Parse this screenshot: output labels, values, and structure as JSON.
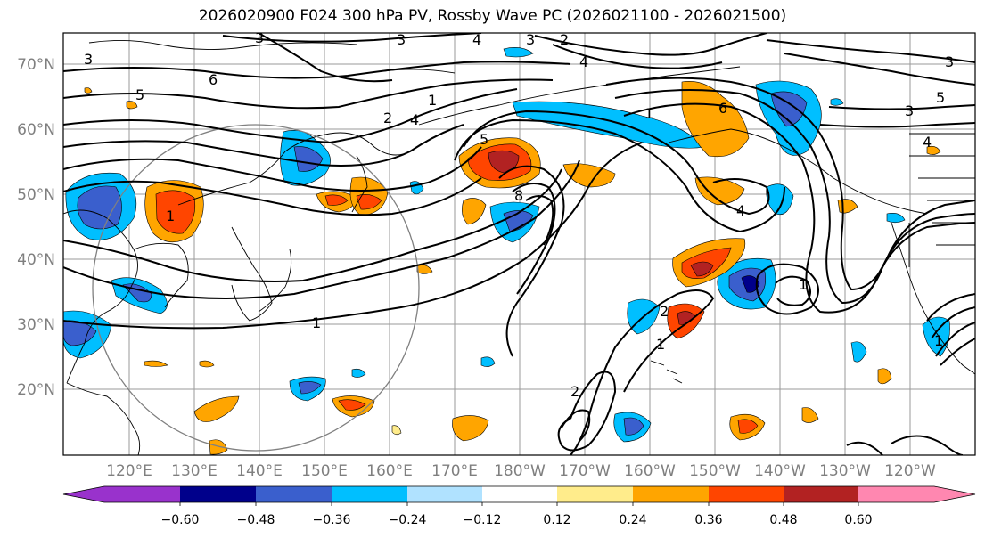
{
  "title": "2026020900 F024 300 hPa PV, Rossby Wave PC (2026021100 - 2026021500)",
  "map": {
    "lat_labels": [
      "70°N",
      "60°N",
      "50°N",
      "40°N",
      "30°N",
      "20°N"
    ],
    "lon_labels": [
      "120°E",
      "130°E",
      "140°E",
      "150°E",
      "160°E",
      "170°E",
      "180°W",
      "170°W",
      "160°W",
      "150°W",
      "140°W",
      "130°W",
      "120°W"
    ],
    "contour_labels": [
      "3",
      "5",
      "6",
      "3",
      "3",
      "2",
      "4",
      "1",
      "4",
      "3",
      "5",
      "1",
      "5",
      "6",
      "3",
      "4",
      "8",
      "1",
      "4",
      "1",
      "2",
      "1",
      "2",
      "1",
      "1",
      "3",
      "2",
      "4"
    ]
  },
  "colorbar": {
    "tick_labels": [
      "−0.60",
      "−0.48",
      "−0.36",
      "−0.24",
      "−0.12",
      "0.12",
      "0.24",
      "0.36",
      "0.48",
      "0.60"
    ],
    "colors": [
      "#9932cc",
      "#00008b",
      "#3a5fcd",
      "#00bfff",
      "#b0e2ff",
      "#ffffff",
      "#ffec8b",
      "#ffa500",
      "#ff4500",
      "#b22222",
      "#ff87b0"
    ]
  }
}
